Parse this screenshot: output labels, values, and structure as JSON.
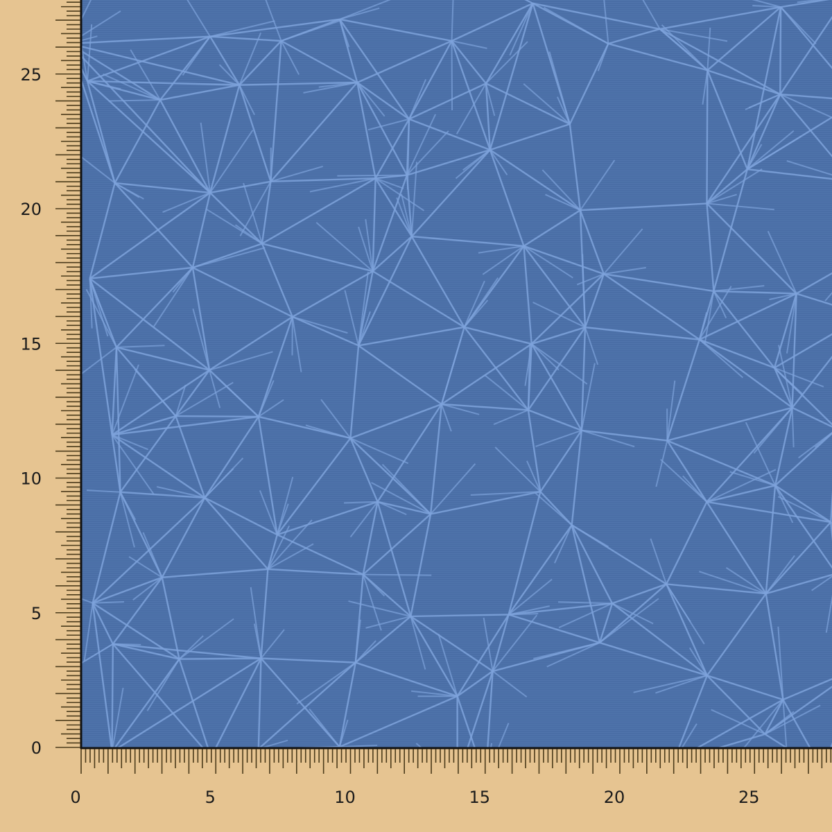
{
  "x_ruler": {
    "labels": [
      "0",
      "5",
      "10",
      "15",
      "20",
      "25"
    ],
    "values": [
      0,
      5,
      10,
      15,
      20,
      25
    ]
  },
  "y_ruler": {
    "labels": [
      "0",
      "5",
      "10",
      "15",
      "20",
      "25"
    ],
    "values": [
      0,
      5,
      10,
      15,
      20,
      25
    ]
  },
  "colors": {
    "background": "#e6c491",
    "fabric": "#4a6ea6",
    "pattern_lines": "#7ea3dc",
    "ticks": "#4a3a1a"
  },
  "fabric": {
    "pattern": "geometric-triangle-lines"
  }
}
